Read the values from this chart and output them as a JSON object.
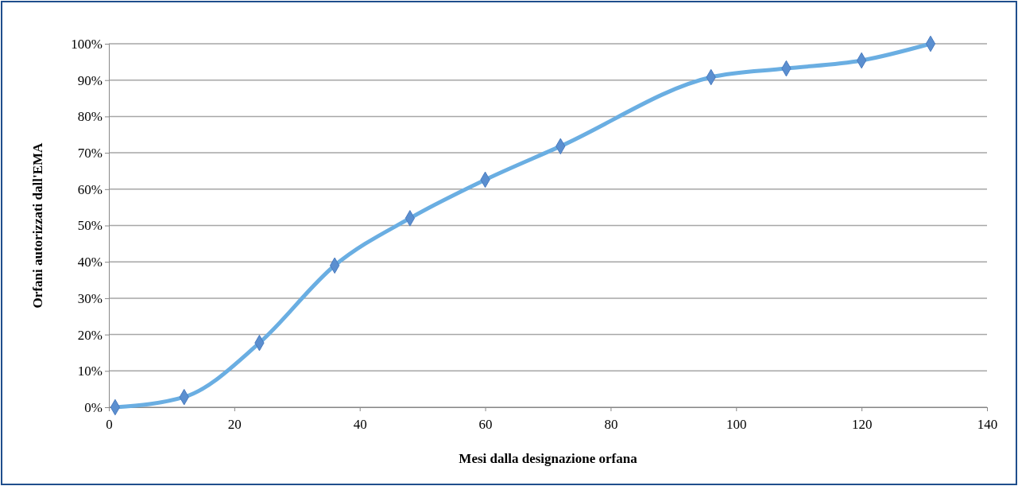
{
  "chart_data": {
    "type": "line",
    "xlabel": "Mesi dalla designazione orfana",
    "ylabel": "Orfani autorizzati dall'EMA",
    "x": [
      1,
      12,
      24,
      36,
      48,
      60,
      72,
      96,
      108,
      120,
      131
    ],
    "series": [
      {
        "color": "#6aaee2",
        "values": [
          0,
          2.8,
          17.7,
          39,
          52,
          62.6,
          71.8,
          90.8,
          93.2,
          95.4,
          100
        ]
      }
    ],
    "xlim": [
      0,
      140
    ],
    "xticks": [
      0,
      20,
      40,
      60,
      80,
      100,
      120,
      140
    ],
    "ylim": [
      0,
      100
    ],
    "yticks": [
      {
        "value": 0,
        "label": "0%"
      },
      {
        "value": 10,
        "label": "10%"
      },
      {
        "value": 20,
        "label": "20%"
      },
      {
        "value": 30,
        "label": "30%"
      },
      {
        "value": 40,
        "label": "40%"
      },
      {
        "value": 50,
        "label": "50%"
      },
      {
        "value": 60,
        "label": "60%"
      },
      {
        "value": 70,
        "label": "70%"
      },
      {
        "value": 80,
        "label": "80%"
      },
      {
        "value": 90,
        "label": "90%"
      },
      {
        "value": 100,
        "label": "100%"
      }
    ],
    "grid": "y",
    "marker": "diamond",
    "line_style": "solid"
  }
}
